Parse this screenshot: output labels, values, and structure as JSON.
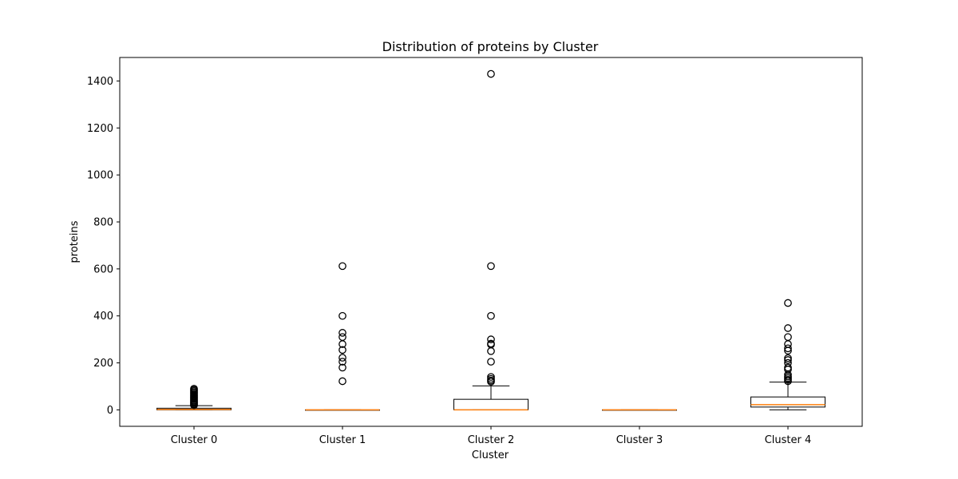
{
  "chart_data": {
    "type": "boxplot",
    "title": "Distribution of proteins by Cluster",
    "xlabel": "Cluster",
    "ylabel": "proteins",
    "ylim": [
      -70,
      1500
    ],
    "yticks": [
      0,
      200,
      400,
      600,
      800,
      1000,
      1200,
      1400
    ],
    "grid": false,
    "colors": {
      "box": "#000000",
      "median": "#ff7f0e",
      "outlier": "#000000"
    },
    "categories": [
      "Cluster 0",
      "Cluster 1",
      "Cluster 2",
      "Cluster 3",
      "Cluster 4"
    ],
    "series": [
      {
        "q1": 0,
        "median": 2,
        "q3": 7,
        "whisker_low": 0,
        "whisker_high": 18,
        "outliers": [
          20,
          24,
          28,
          32,
          36,
          40,
          45,
          50,
          55,
          60,
          65,
          70,
          75,
          80,
          85,
          90
        ]
      },
      {
        "q1": 0,
        "median": 0,
        "q3": 0,
        "whisker_low": 0,
        "whisker_high": 0,
        "outliers": [
          122,
          180,
          205,
          222,
          255,
          280,
          310,
          328,
          400,
          612
        ]
      },
      {
        "q1": 0,
        "median": 0,
        "q3": 45,
        "whisker_low": 0,
        "whisker_high": 102,
        "outliers": [
          120,
          125,
          132,
          140,
          205,
          250,
          278,
          282,
          300,
          400,
          612,
          1430
        ]
      },
      {
        "q1": 0,
        "median": 0,
        "q3": 0,
        "whisker_low": 0,
        "whisker_high": 0,
        "outliers": []
      },
      {
        "q1": 12,
        "median": 22,
        "q3": 55,
        "whisker_low": 0,
        "whisker_high": 118,
        "outliers": [
          122,
          128,
          135,
          142,
          150,
          172,
          180,
          200,
          212,
          220,
          252,
          262,
          280,
          310,
          348,
          455
        ]
      }
    ]
  }
}
